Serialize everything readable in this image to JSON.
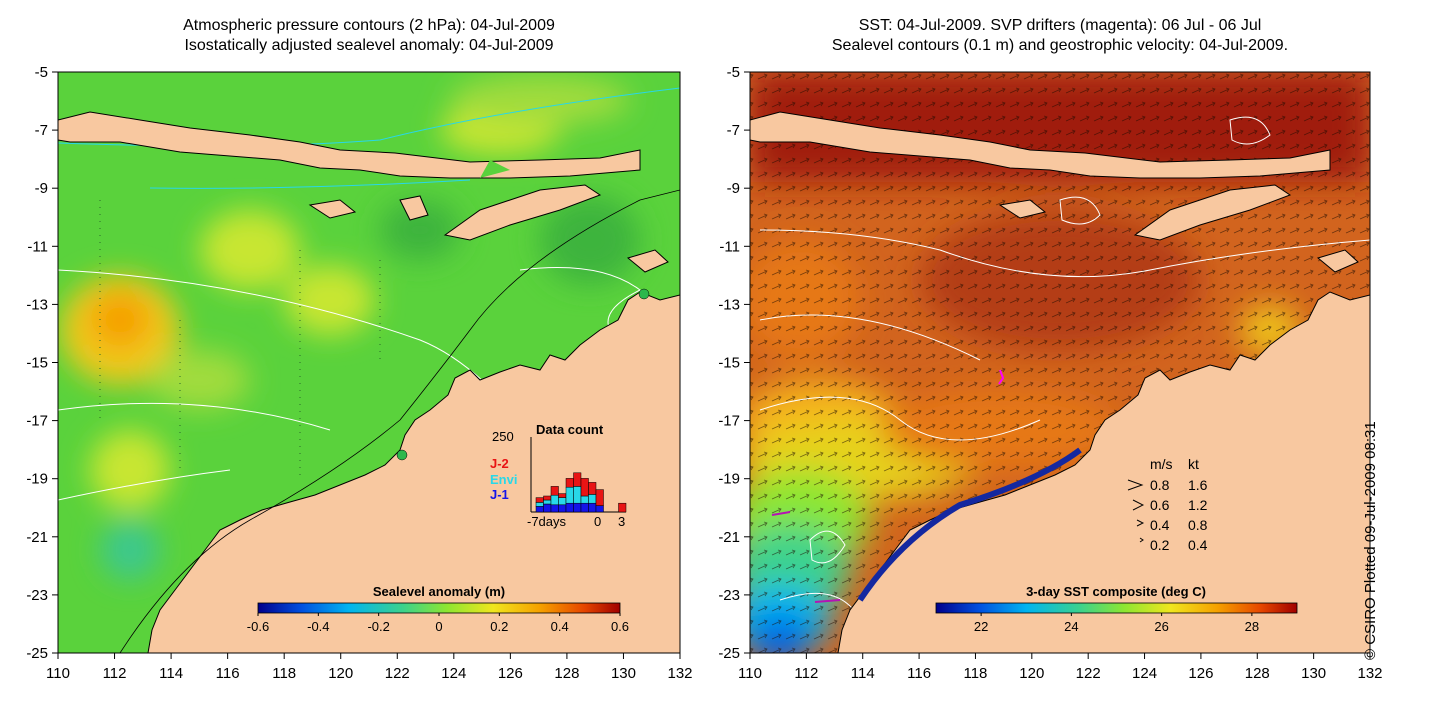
{
  "left_panel": {
    "title_line1": "Atmospheric pressure contours (2 hPa): 04-Jul-2009",
    "title_line2": "Isostatically adjusted sealevel anomaly: 04-Jul-2009",
    "colorbar_label": "Sealevel anomaly (m)",
    "colorbar_ticks": [
      "-0.6",
      "-0.4",
      "-0.2",
      "0",
      "0.2",
      "0.4",
      "0.6"
    ],
    "colorbar_colors": [
      "#00008c",
      "#0050e0",
      "#00b4f0",
      "#3cd28c",
      "#8ce632",
      "#f0e61e",
      "#f5a000",
      "#e64600",
      "#a00000"
    ],
    "inset": {
      "title": "Data count",
      "ytick": "250",
      "xticks": [
        "-7days",
        "0",
        "3"
      ],
      "legend": [
        {
          "label": "J-2",
          "color": "#e81414"
        },
        {
          "label": "Envi",
          "color": "#28d8e8"
        },
        {
          "label": "J-1",
          "color": "#1414e8"
        }
      ],
      "bars": [
        {
          "j1": 0.35,
          "envi": 0.25,
          "j2": 0.3
        },
        {
          "j1": 0.5,
          "envi": 0.25,
          "j2": 0.25
        },
        {
          "j1": 0.45,
          "envi": 0.6,
          "j2": 0.55
        },
        {
          "j1": 0.45,
          "envi": 0.45,
          "j2": 0.25
        },
        {
          "j1": 0.55,
          "envi": 1.0,
          "j2": 0.55
        },
        {
          "j1": 0.55,
          "envi": 1.05,
          "j2": 0.85
        },
        {
          "j1": 0.55,
          "envi": 0.45,
          "j2": 1.1
        },
        {
          "j1": 0.55,
          "envi": 0.55,
          "j2": 0.75
        },
        {
          "j1": 0.4,
          "envi": 0.0,
          "j2": 1.0
        },
        {
          "j1": 0.0,
          "envi": 0.0,
          "j2": 0.0
        },
        {
          "j1": 0.0,
          "envi": 0.0,
          "j2": 0.0
        },
        {
          "j1": 0.0,
          "envi": 0.0,
          "j2": 0.55
        }
      ]
    }
  },
  "right_panel": {
    "title_line1": "SST: 04-Jul-2009. SVP drifters (magenta): 06 Jul - 06 Jul",
    "title_line2": "Sealevel contours (0.1 m) and geostrophic velocity: 04-Jul-2009.",
    "colorbar_label": "3-day SST composite (deg C)",
    "colorbar_ticks": [
      "22",
      "24",
      "26",
      "28"
    ],
    "colorbar_colors": [
      "#00008c",
      "#0050e0",
      "#00b4f0",
      "#3cd28c",
      "#8ce632",
      "#f0e61e",
      "#f5a000",
      "#e64600",
      "#a00000"
    ],
    "velocity_legend": {
      "header_ms": "m/s",
      "header_kt": "kt",
      "rows": [
        {
          "ms": "0.8",
          "kt": "1.6"
        },
        {
          "ms": "0.6",
          "kt": "1.2"
        },
        {
          "ms": "0.4",
          "kt": "0.8"
        },
        {
          "ms": "0.2",
          "kt": "0.4"
        }
      ]
    }
  },
  "axes": {
    "lon_ticks": [
      "110",
      "112",
      "114",
      "116",
      "118",
      "120",
      "122",
      "124",
      "126",
      "128",
      "130",
      "132"
    ],
    "lat_ticks": [
      "-5",
      "-7",
      "-9",
      "-11",
      "-13",
      "-15",
      "-17",
      "-19",
      "-21",
      "-23",
      "-25"
    ]
  },
  "colors": {
    "land": "#f8c8a0",
    "sea_left_main": "#5ad23c",
    "sea_right_main": "#d2641e"
  },
  "credit": "© CSIRO Plotted 09-Jul-2009 08:31"
}
